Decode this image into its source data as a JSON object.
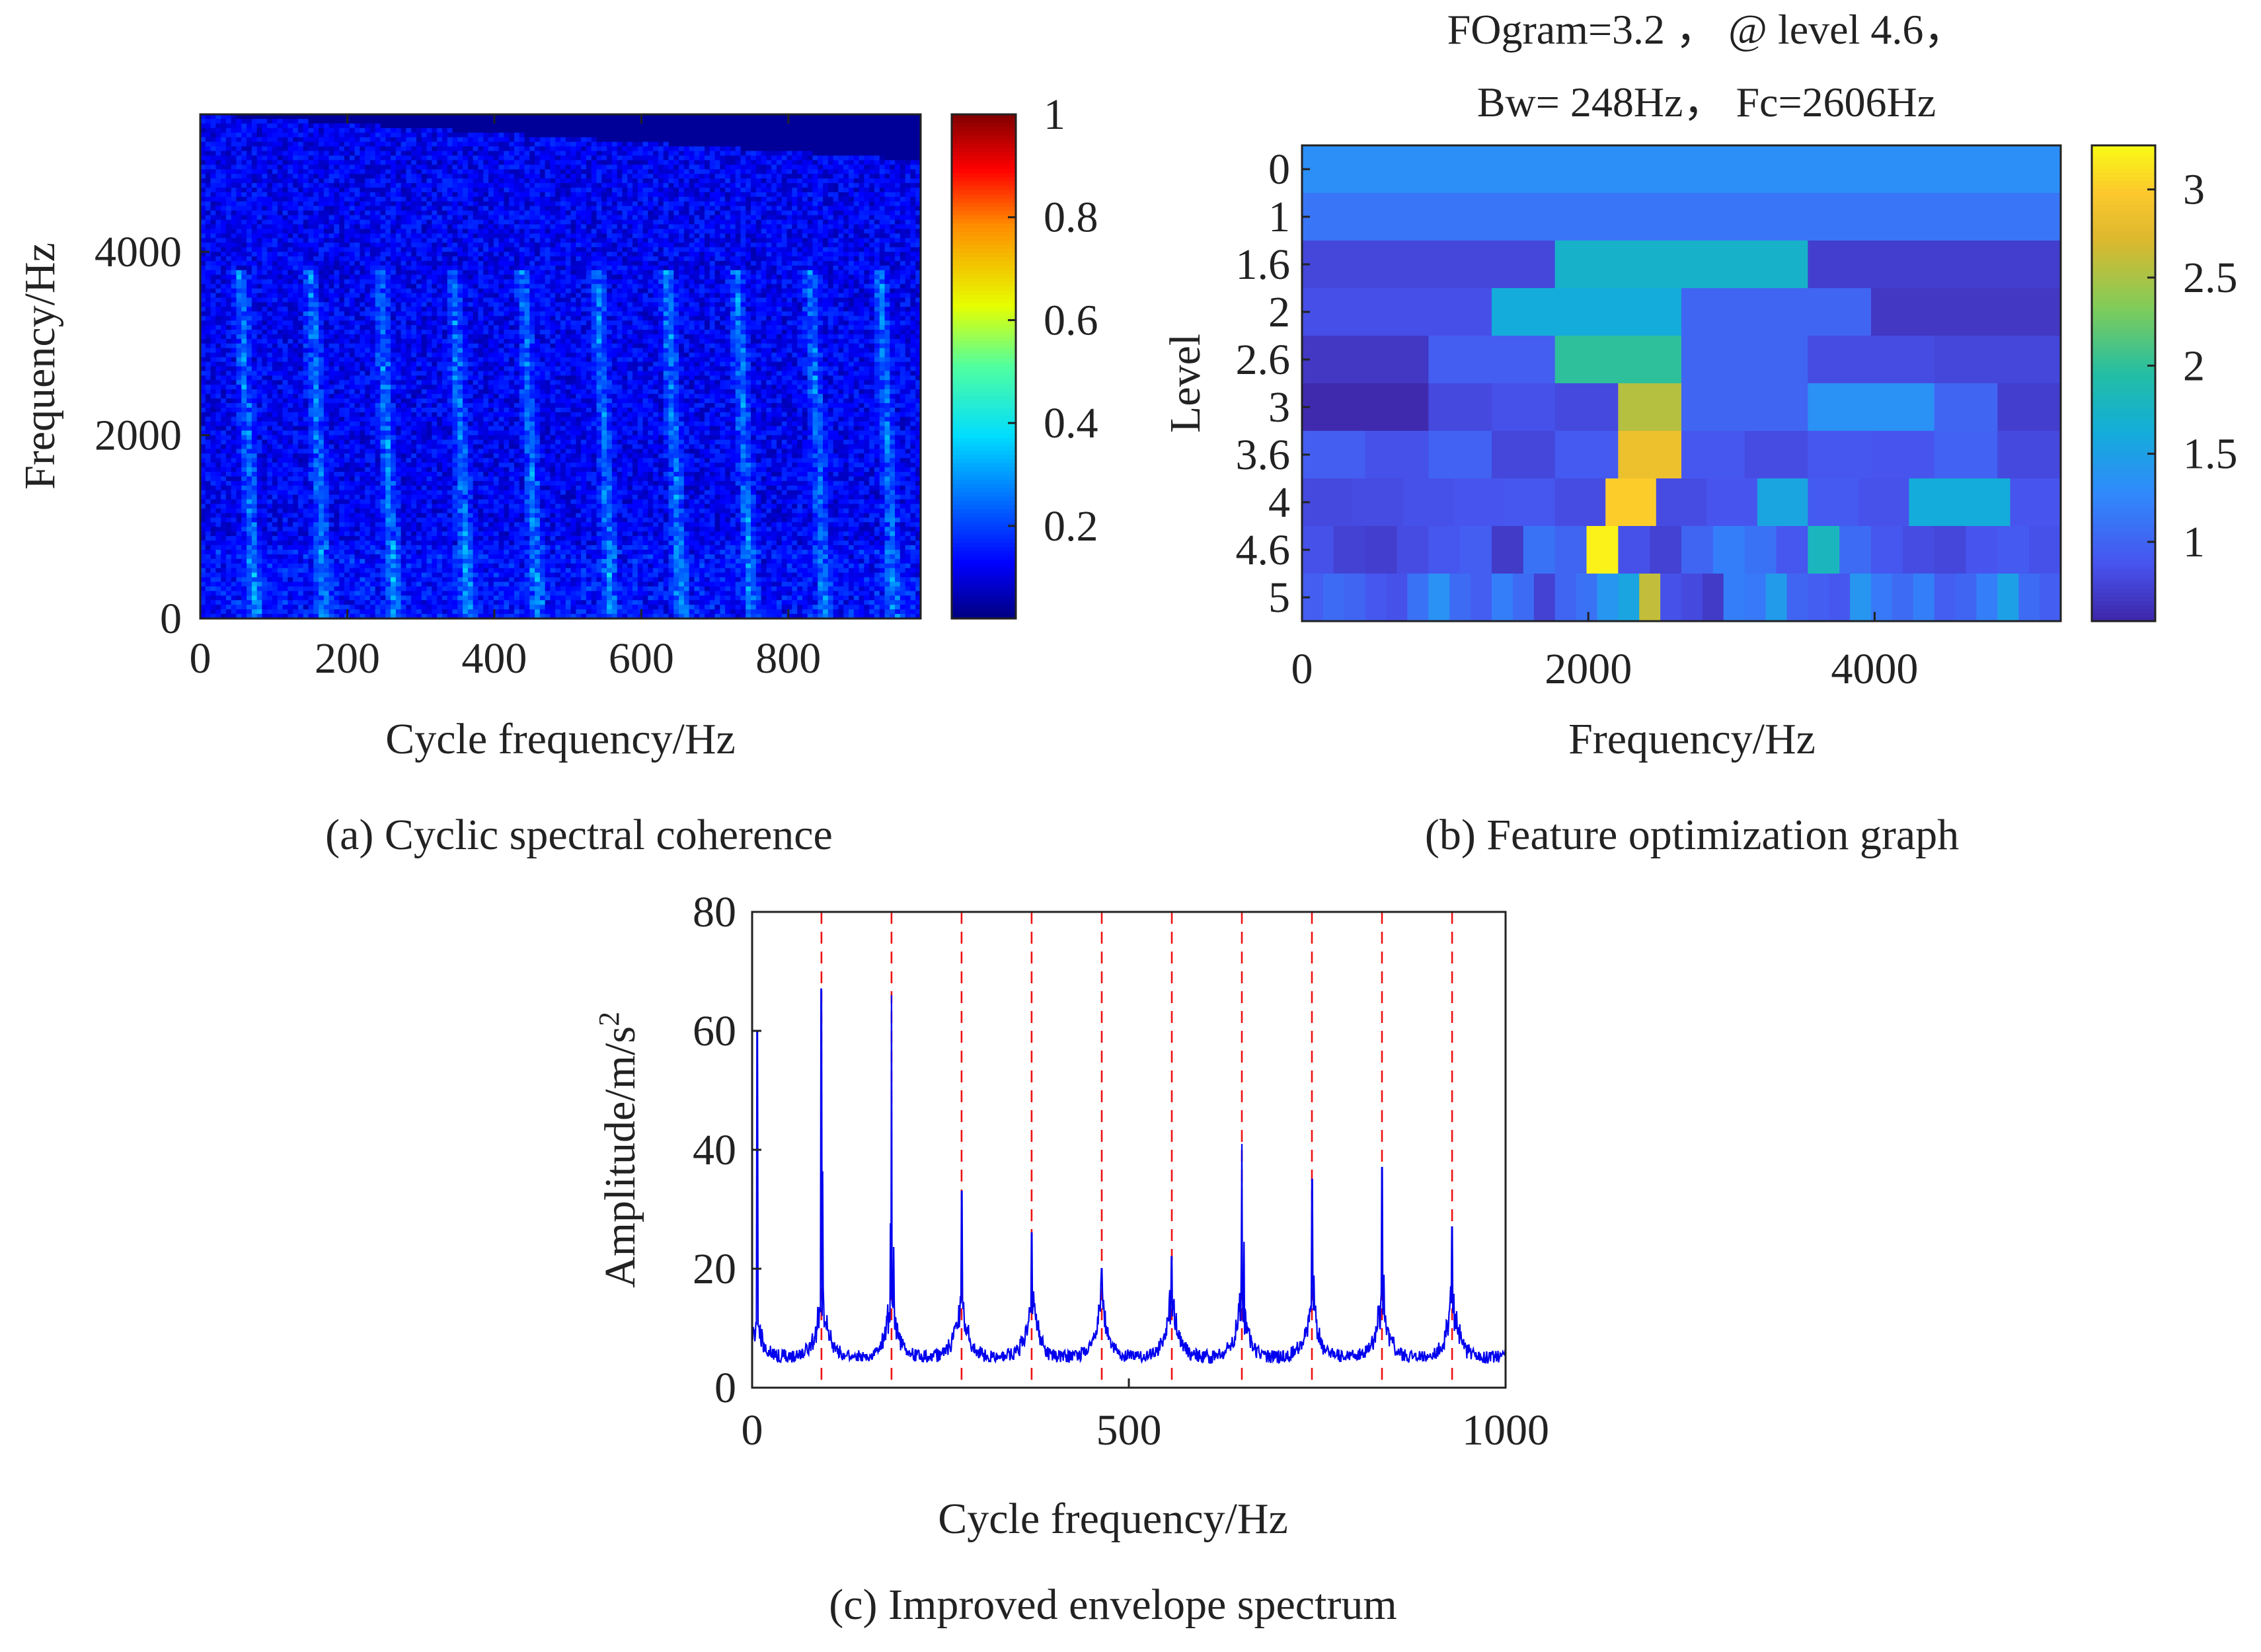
{
  "captions": {
    "a": "(a) Cyclic spectral coherence",
    "b": "(b) Feature optimization graph",
    "c": "(c) Improved envelope spectrum"
  },
  "chart_data": [
    {
      "id": "a",
      "type": "heatmap",
      "xlabel": "Cycle frequency/Hz",
      "ylabel": "Frequency/Hz",
      "xlim": [
        0,
        980
      ],
      "ylim": [
        0,
        5500
      ],
      "xticks": [
        0,
        200,
        400,
        600,
        800
      ],
      "yticks": [
        0,
        2000,
        4000
      ],
      "colorbar": {
        "range": [
          0.02,
          1
        ],
        "ticks": [
          0.2,
          0.4,
          0.6,
          0.8,
          1
        ],
        "colormap": "jet"
      },
      "background_level": 0.12,
      "stripe_cycle_frequencies": [
        75,
        170,
        265,
        365,
        460,
        560,
        655,
        750,
        850,
        945
      ],
      "stripe_level": 0.3,
      "band_edge": {
        "at_x0": 5500,
        "at_xmax": 5000
      }
    },
    {
      "id": "b",
      "type": "heatmap",
      "title_lines": [
        "FOgram=3.2 ， @ level 4.6，",
        "Bw= 248Hz， Fc=2606Hz"
      ],
      "xlabel": "Frequency/Hz",
      "ylabel": "Level",
      "xlim": [
        0,
        5300
      ],
      "xticks": [
        0,
        2000,
        4000
      ],
      "levels": [
        "0",
        "1",
        "1.6",
        "2",
        "2.6",
        "3",
        "3.6",
        "4",
        "4.6",
        "5"
      ],
      "colorbar": {
        "range": [
          0.55,
          3.25
        ],
        "ticks": [
          1,
          1.5,
          2,
          2.5,
          3
        ],
        "colormap": "parula"
      },
      "rows": [
        [
          1.33
        ],
        [
          1.12,
          1.12
        ],
        [
          0.78,
          0.78,
          1.72,
          1.72,
          0.72,
          0.72
        ],
        [
          0.84,
          0.84,
          0.84,
          1.62,
          1.62,
          1.62,
          1.0,
          1.0,
          1.0,
          0.68,
          0.68,
          0.68
        ],
        [
          0.68,
          0.68,
          0.95,
          0.95,
          2.0,
          2.0,
          1.0,
          1.0,
          0.82,
          0.82,
          0.78,
          0.78
        ],
        [
          0.58,
          0.58,
          0.8,
          0.85,
          0.8,
          2.55,
          1.0,
          1.0,
          1.35,
          1.35,
          1.0,
          0.72
        ],
        [
          0.95,
          0.85,
          0.98,
          0.78,
          0.92,
          2.85,
          0.9,
          0.82,
          0.9,
          0.88,
          0.98,
          0.8
        ],
        [
          0.8,
          0.82,
          0.85,
          0.88,
          0.9,
          0.82,
          3.0,
          0.82,
          0.88,
          1.55,
          0.92,
          0.86,
          1.62,
          1.62,
          0.88
        ],
        [
          0.85,
          0.75,
          0.72,
          0.82,
          0.9,
          0.95,
          0.7,
          1.1,
          1.0,
          3.2,
          0.85,
          0.75,
          1.0,
          1.2,
          1.1,
          0.9,
          1.8,
          1.05,
          0.9,
          0.82,
          0.78,
          0.88,
          0.92,
          0.85
        ],
        [
          0.95,
          1.05,
          1.0,
          0.9,
          0.85,
          1.1,
          1.35,
          1.05,
          0.95,
          1.2,
          1.05,
          0.75,
          1.0,
          1.1,
          1.4,
          1.55,
          2.6,
          0.85,
          0.8,
          0.7,
          1.2,
          1.15,
          1.45,
          1.0,
          0.95,
          0.9,
          1.4,
          1.15,
          1.05,
          1.2,
          0.95,
          1.0,
          1.2,
          1.5,
          1.05,
          0.95
        ]
      ]
    },
    {
      "id": "c",
      "type": "line",
      "xlabel": "Cycle frequency/Hz",
      "ylabel": "Amplitude/m/s",
      "ylabel_sup": "2",
      "xlim": [
        0,
        1000
      ],
      "ylim": [
        0,
        80
      ],
      "xticks": [
        0,
        500,
        1000
      ],
      "yticks": [
        0,
        20,
        40,
        60,
        80
      ],
      "series_color": "#0000ee",
      "marker_color": "#ee1111",
      "fault_lines": [
        92,
        185,
        278,
        371,
        464,
        557,
        650,
        743,
        836,
        929
      ],
      "peaks": [
        {
          "x": 7,
          "y": 60
        },
        {
          "x": 92,
          "y": 67
        },
        {
          "x": 185,
          "y": 66
        },
        {
          "x": 278,
          "y": 33
        },
        {
          "x": 371,
          "y": 26
        },
        {
          "x": 464,
          "y": 20
        },
        {
          "x": 557,
          "y": 22
        },
        {
          "x": 650,
          "y": 41
        },
        {
          "x": 743,
          "y": 35
        },
        {
          "x": 836,
          "y": 37
        },
        {
          "x": 929,
          "y": 27
        }
      ],
      "baseline": 4
    }
  ]
}
